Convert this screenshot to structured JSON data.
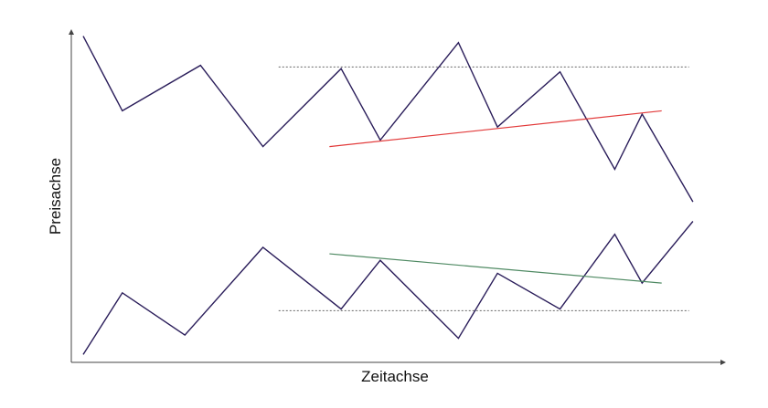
{
  "chart_data": {
    "type": "line",
    "xlabel": "Zeitachse",
    "ylabel": "Preisachse",
    "xlim": [
      0,
      16
    ],
    "ylim": [
      0,
      100
    ],
    "grid": false,
    "colors": {
      "series": "#2a1d5a",
      "rising_trendline": "#e23a3a",
      "falling_trendline": "#4f8a63",
      "level_lines": "#666666",
      "axes": "#444444"
    },
    "series": [
      {
        "x": [
          0,
          1,
          3,
          4.6,
          6.6,
          7.6,
          9.6,
          10.6,
          12.2,
          13.6,
          14.3,
          15.6
        ],
        "values": [
          99,
          76,
          90,
          65,
          89,
          67,
          97,
          71,
          88,
          58,
          75,
          48
        ]
      },
      {
        "x": [
          0,
          1,
          2.6,
          4.6,
          6.6,
          7.6,
          9.6,
          10.6,
          12.2,
          13.6,
          14.3,
          15.6
        ],
        "values": [
          1,
          20,
          7,
          34,
          15,
          30,
          6,
          26,
          15,
          38,
          23,
          42
        ]
      }
    ],
    "trendlines": [
      {
        "kind": "rising",
        "x": [
          6.3,
          14.8
        ],
        "values": [
          65,
          76
        ]
      },
      {
        "kind": "falling",
        "x": [
          6.3,
          14.8
        ],
        "values": [
          32,
          23
        ]
      }
    ],
    "level_lines": [
      {
        "kind": "resistance",
        "x": [
          5.0,
          15.5
        ],
        "values": [
          89.5,
          89.5
        ]
      },
      {
        "kind": "support",
        "x": [
          5.0,
          15.5
        ],
        "values": [
          14.5,
          14.5
        ]
      }
    ]
  }
}
